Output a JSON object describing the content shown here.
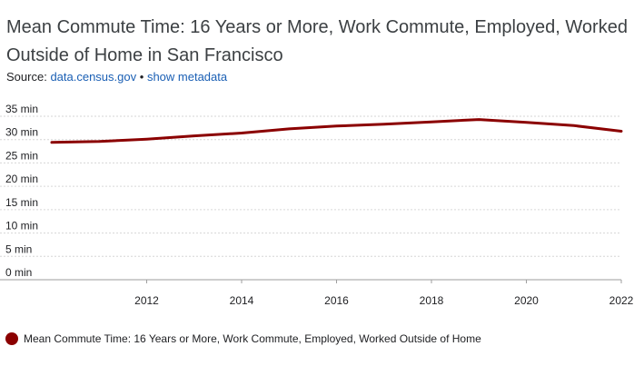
{
  "title": "Mean Commute Time: 16 Years or More, Work Commute, Employed, Worked Outside of Home in San Francisco",
  "source": {
    "label": "Source:",
    "link_text": "data.census.gov",
    "separator": "•",
    "metadata_link": "show metadata"
  },
  "colors": {
    "series": "#8b0000",
    "link": "#1a5fb4",
    "grid": "#d6d6d6"
  },
  "chart_data": {
    "type": "line",
    "title": "Mean Commute Time: 16 Years or More, Work Commute, Employed, Worked Outside of Home in San Francisco",
    "xlabel": "",
    "ylabel": "",
    "x": [
      2010,
      2011,
      2012,
      2013,
      2014,
      2015,
      2016,
      2017,
      2018,
      2019,
      2020,
      2021,
      2022
    ],
    "series": [
      {
        "name": "Mean Commute Time: 16 Years or More, Work Commute, Employed, Worked Outside of Home",
        "values": [
          29.4,
          29.6,
          30.1,
          30.8,
          31.4,
          32.3,
          32.9,
          33.3,
          33.8,
          34.3,
          33.7,
          33.0,
          31.8
        ]
      }
    ],
    "xlim": [
      2010,
      2022
    ],
    "ylim": [
      0,
      35
    ],
    "x_ticks": [
      2012,
      2014,
      2016,
      2018,
      2020,
      2022
    ],
    "x_tick_labels": [
      "2012",
      "2014",
      "2016",
      "2018",
      "2020",
      "2022"
    ],
    "y_ticks": [
      0,
      5,
      10,
      15,
      20,
      25,
      30,
      35
    ],
    "y_tick_labels": [
      "0 min",
      "5 min",
      "10 min",
      "15 min",
      "20 min",
      "25 min",
      "30 min",
      "35 min"
    ],
    "grid": true,
    "legend_position": "bottom-left"
  }
}
